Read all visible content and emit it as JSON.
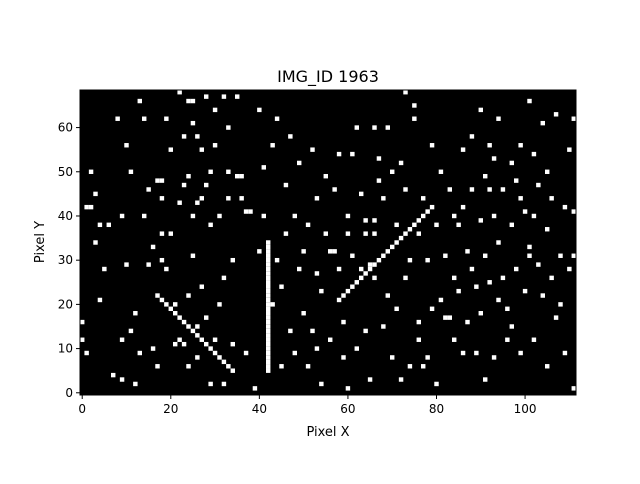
{
  "chart_data": {
    "type": "heatmap",
    "title": "IMG_ID 1963",
    "xlabel": "Pixel X",
    "ylabel": "Pixel Y",
    "xlim": [
      0,
      112
    ],
    "ylim": [
      0,
      69
    ],
    "x_ticks": [
      0,
      20,
      40,
      60,
      80,
      100
    ],
    "y_ticks": [
      0,
      10,
      20,
      30,
      40,
      50,
      60
    ],
    "grid": false,
    "colors": {
      "background": "#000000",
      "pixel_on": "#ffffff"
    },
    "segments": [
      {
        "name": "diagonal-descending",
        "x0": 17,
        "y0": 22,
        "x1": 34,
        "y1": 5
      },
      {
        "name": "vertical-line",
        "x0": 42,
        "y0": 5,
        "x1": 42,
        "y1": 34
      },
      {
        "name": "diagonal-ascending",
        "x0": 58,
        "y0": 21,
        "x1": 79,
        "y1": 42
      }
    ],
    "on_pixels": [
      [
        0,
        16
      ],
      [
        0,
        12
      ],
      [
        1,
        9
      ],
      [
        1,
        42
      ],
      [
        2,
        42
      ],
      [
        2,
        50
      ],
      [
        3,
        34
      ],
      [
        3,
        45
      ],
      [
        4,
        38
      ],
      [
        4,
        21
      ],
      [
        5,
        28
      ],
      [
        6,
        38
      ],
      [
        7,
        4
      ],
      [
        8,
        62
      ],
      [
        9,
        40
      ],
      [
        9,
        12
      ],
      [
        9,
        3
      ],
      [
        10,
        29
      ],
      [
        10,
        56
      ],
      [
        11,
        50
      ],
      [
        11,
        14
      ],
      [
        12,
        18
      ],
      [
        12,
        2
      ],
      [
        13,
        66
      ],
      [
        13,
        9
      ],
      [
        14,
        40
      ],
      [
        14,
        62
      ],
      [
        15,
        46
      ],
      [
        15,
        29
      ],
      [
        16,
        33
      ],
      [
        16,
        10
      ],
      [
        17,
        48
      ],
      [
        17,
        6
      ],
      [
        18,
        48
      ],
      [
        18,
        44
      ],
      [
        18,
        36
      ],
      [
        18,
        30
      ],
      [
        19,
        62
      ],
      [
        19,
        28
      ],
      [
        20,
        55
      ],
      [
        20,
        36
      ],
      [
        21,
        20
      ],
      [
        21,
        11
      ],
      [
        22,
        68
      ],
      [
        22,
        43
      ],
      [
        22,
        12
      ],
      [
        23,
        58
      ],
      [
        23,
        47
      ],
      [
        23,
        16
      ],
      [
        23,
        11
      ],
      [
        24,
        66
      ],
      [
        24,
        49
      ],
      [
        24,
        22
      ],
      [
        24,
        6
      ],
      [
        25,
        66
      ],
      [
        25,
        61
      ],
      [
        25,
        40
      ],
      [
        25,
        31
      ],
      [
        26,
        58
      ],
      [
        26,
        43
      ],
      [
        26,
        15
      ],
      [
        26,
        8
      ],
      [
        27,
        55
      ],
      [
        27,
        44
      ],
      [
        27,
        24
      ],
      [
        28,
        67
      ],
      [
        28,
        47
      ],
      [
        28,
        17
      ],
      [
        29,
        50
      ],
      [
        29,
        38
      ],
      [
        29,
        2
      ],
      [
        30,
        64
      ],
      [
        30,
        56
      ],
      [
        30,
        12
      ],
      [
        31,
        40
      ],
      [
        31,
        20
      ],
      [
        32,
        67
      ],
      [
        32,
        26
      ],
      [
        32,
        2
      ],
      [
        33,
        60
      ],
      [
        33,
        50
      ],
      [
        33,
        44
      ],
      [
        34,
        30
      ],
      [
        34,
        11
      ],
      [
        35,
        49
      ],
      [
        35,
        67
      ],
      [
        36,
        49
      ],
      [
        36,
        44
      ],
      [
        37,
        9
      ],
      [
        37,
        41
      ],
      [
        38,
        41
      ],
      [
        39,
        1
      ],
      [
        40,
        64
      ],
      [
        40,
        32
      ],
      [
        41,
        51
      ],
      [
        41,
        40
      ],
      [
        43,
        56
      ],
      [
        43,
        20
      ],
      [
        44,
        62
      ],
      [
        44,
        30
      ],
      [
        45,
        6
      ],
      [
        45,
        24
      ],
      [
        46,
        36
      ],
      [
        46,
        47
      ],
      [
        47,
        58
      ],
      [
        47,
        14
      ],
      [
        48,
        40
      ],
      [
        48,
        9
      ],
      [
        49,
        52
      ],
      [
        49,
        28
      ],
      [
        50,
        32
      ],
      [
        50,
        18
      ],
      [
        51,
        38
      ],
      [
        51,
        6
      ],
      [
        52,
        55
      ],
      [
        52,
        14
      ],
      [
        53,
        44
      ],
      [
        53,
        27
      ],
      [
        53,
        10
      ],
      [
        54,
        23
      ],
      [
        54,
        2
      ],
      [
        55,
        36
      ],
      [
        55,
        49
      ],
      [
        56,
        12
      ],
      [
        56,
        32
      ],
      [
        57,
        32
      ],
      [
        57,
        46
      ],
      [
        58,
        28
      ],
      [
        58,
        54
      ],
      [
        59,
        8
      ],
      [
        59,
        16
      ],
      [
        60,
        40
      ],
      [
        60,
        36
      ],
      [
        60,
        1
      ],
      [
        61,
        54
      ],
      [
        61,
        31
      ],
      [
        61,
        24
      ],
      [
        62,
        10
      ],
      [
        62,
        60
      ],
      [
        63,
        28
      ],
      [
        63,
        45
      ],
      [
        64,
        39
      ],
      [
        64,
        36
      ],
      [
        64,
        14
      ],
      [
        65,
        29
      ],
      [
        65,
        3
      ],
      [
        66,
        60
      ],
      [
        66,
        39
      ],
      [
        66,
        36
      ],
      [
        66,
        26
      ],
      [
        67,
        53
      ],
      [
        67,
        48
      ],
      [
        67,
        30
      ],
      [
        68,
        15
      ],
      [
        68,
        44
      ],
      [
        69,
        60
      ],
      [
        69,
        22
      ],
      [
        70,
        50
      ],
      [
        70,
        8
      ],
      [
        71,
        38
      ],
      [
        71,
        19
      ],
      [
        72,
        52
      ],
      [
        72,
        3
      ],
      [
        73,
        68
      ],
      [
        73,
        46
      ],
      [
        73,
        26
      ],
      [
        74,
        6
      ],
      [
        74,
        30
      ],
      [
        75,
        62
      ],
      [
        75,
        65
      ],
      [
        76,
        16
      ],
      [
        76,
        36
      ],
      [
        76,
        12
      ],
      [
        77,
        6
      ],
      [
        77,
        44
      ],
      [
        78,
        30
      ],
      [
        78,
        8
      ],
      [
        79,
        19
      ],
      [
        79,
        56
      ],
      [
        80,
        38
      ],
      [
        80,
        2
      ],
      [
        81,
        50
      ],
      [
        81,
        21
      ],
      [
        82,
        17
      ],
      [
        82,
        31
      ],
      [
        83,
        17
      ],
      [
        83,
        46
      ],
      [
        84,
        40
      ],
      [
        84,
        26
      ],
      [
        84,
        12
      ],
      [
        85,
        38
      ],
      [
        85,
        23
      ],
      [
        86,
        42
      ],
      [
        86,
        9
      ],
      [
        86,
        55
      ],
      [
        87,
        32
      ],
      [
        87,
        16
      ],
      [
        88,
        58
      ],
      [
        88,
        46
      ],
      [
        88,
        28
      ],
      [
        89,
        24
      ],
      [
        89,
        9
      ],
      [
        90,
        39
      ],
      [
        90,
        64
      ],
      [
        90,
        18
      ],
      [
        91,
        49
      ],
      [
        91,
        31
      ],
      [
        91,
        3
      ],
      [
        92,
        46
      ],
      [
        92,
        56
      ],
      [
        92,
        25
      ],
      [
        93,
        53
      ],
      [
        93,
        40
      ],
      [
        93,
        8
      ],
      [
        94,
        62
      ],
      [
        94,
        34
      ],
      [
        94,
        21
      ],
      [
        95,
        26
      ],
      [
        95,
        46
      ],
      [
        96,
        12
      ],
      [
        96,
        19
      ],
      [
        97,
        52
      ],
      [
        97,
        38
      ],
      [
        97,
        15
      ],
      [
        98,
        48
      ],
      [
        98,
        28
      ],
      [
        99,
        56
      ],
      [
        99,
        44
      ],
      [
        99,
        9
      ],
      [
        100,
        41
      ],
      [
        100,
        23
      ],
      [
        101,
        66
      ],
      [
        101,
        33
      ],
      [
        101,
        31
      ],
      [
        102,
        54
      ],
      [
        102,
        40
      ],
      [
        102,
        12
      ],
      [
        103,
        47
      ],
      [
        103,
        29
      ],
      [
        104,
        61
      ],
      [
        104,
        22
      ],
      [
        105,
        50
      ],
      [
        105,
        37
      ],
      [
        105,
        6
      ],
      [
        106,
        26
      ],
      [
        106,
        44
      ],
      [
        107,
        63
      ],
      [
        107,
        17
      ],
      [
        108,
        31
      ],
      [
        108,
        20
      ],
      [
        109,
        42
      ],
      [
        109,
        9
      ],
      [
        110,
        28
      ],
      [
        110,
        55
      ],
      [
        111,
        41
      ],
      [
        111,
        31
      ],
      [
        111,
        62
      ],
      [
        111,
        1
      ]
    ]
  }
}
